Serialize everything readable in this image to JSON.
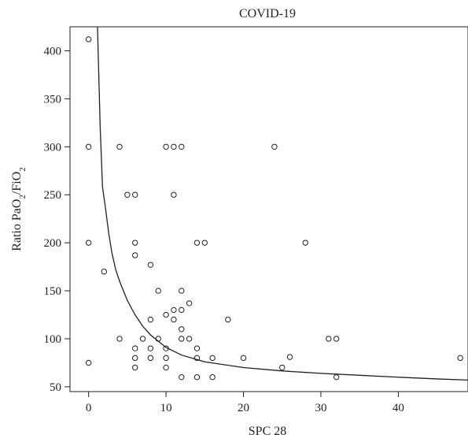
{
  "chart_data": {
    "type": "scatter",
    "title": "COVID-19",
    "xlabel": "SPC 28",
    "ylabel": {
      "parts": [
        {
          "text": "Ratio PaO",
          "sub": false
        },
        {
          "text": "2",
          "sub": true
        },
        {
          "text": "/FiO",
          "sub": false
        },
        {
          "text": "2",
          "sub": true
        }
      ]
    },
    "xlim": [
      -2.4,
      49
    ],
    "ylim": [
      45,
      425
    ],
    "x_ticks": [
      0,
      10,
      20,
      30,
      40
    ],
    "y_ticks": [
      50,
      100,
      150,
      200,
      250,
      300,
      350,
      400
    ],
    "grid": false,
    "legend": "none",
    "colors": {
      "ink": "#231f20",
      "background": "#ffffff"
    },
    "points": [
      {
        "x": 0,
        "y": 412
      },
      {
        "x": 0,
        "y": 300
      },
      {
        "x": 0,
        "y": 200
      },
      {
        "x": 0,
        "y": 75
      },
      {
        "x": 2,
        "y": 170
      },
      {
        "x": 4,
        "y": 300
      },
      {
        "x": 4,
        "y": 100
      },
      {
        "x": 5,
        "y": 250
      },
      {
        "x": 6,
        "y": 250
      },
      {
        "x": 6,
        "y": 200
      },
      {
        "x": 6,
        "y": 187
      },
      {
        "x": 6,
        "y": 90
      },
      {
        "x": 6,
        "y": 80
      },
      {
        "x": 6,
        "y": 70
      },
      {
        "x": 7,
        "y": 100
      },
      {
        "x": 8,
        "y": 177
      },
      {
        "x": 8,
        "y": 120
      },
      {
        "x": 8,
        "y": 90
      },
      {
        "x": 8,
        "y": 80
      },
      {
        "x": 9,
        "y": 150
      },
      {
        "x": 9,
        "y": 100
      },
      {
        "x": 10,
        "y": 300
      },
      {
        "x": 10,
        "y": 125
      },
      {
        "x": 10,
        "y": 90
      },
      {
        "x": 10,
        "y": 80
      },
      {
        "x": 10,
        "y": 70
      },
      {
        "x": 11,
        "y": 300
      },
      {
        "x": 11,
        "y": 250
      },
      {
        "x": 11,
        "y": 130
      },
      {
        "x": 11,
        "y": 120
      },
      {
        "x": 12,
        "y": 300
      },
      {
        "x": 12,
        "y": 150
      },
      {
        "x": 12,
        "y": 130
      },
      {
        "x": 12,
        "y": 110
      },
      {
        "x": 12,
        "y": 100
      },
      {
        "x": 12,
        "y": 60
      },
      {
        "x": 13,
        "y": 137
      },
      {
        "x": 13,
        "y": 100
      },
      {
        "x": 14,
        "y": 200
      },
      {
        "x": 14,
        "y": 90
      },
      {
        "x": 14,
        "y": 80
      },
      {
        "x": 14,
        "y": 60
      },
      {
        "x": 15,
        "y": 200
      },
      {
        "x": 16,
        "y": 80
      },
      {
        "x": 16,
        "y": 60
      },
      {
        "x": 18,
        "y": 120
      },
      {
        "x": 20,
        "y": 80
      },
      {
        "x": 24,
        "y": 300
      },
      {
        "x": 25,
        "y": 70
      },
      {
        "x": 26,
        "y": 81
      },
      {
        "x": 28,
        "y": 200
      },
      {
        "x": 31,
        "y": 100
      },
      {
        "x": 32,
        "y": 100
      },
      {
        "x": 32,
        "y": 60
      },
      {
        "x": 48,
        "y": 80
      }
    ],
    "fit_curve": {
      "points": [
        {
          "x": 1.15,
          "y": 425
        },
        {
          "x": 1.3,
          "y": 380
        },
        {
          "x": 1.5,
          "y": 320
        },
        {
          "x": 1.8,
          "y": 258
        },
        {
          "x": 2.2,
          "y": 235
        },
        {
          "x": 2.6,
          "y": 210
        },
        {
          "x": 3.0,
          "y": 190
        },
        {
          "x": 3.5,
          "y": 172
        },
        {
          "x": 4.0,
          "y": 160
        },
        {
          "x": 5.0,
          "y": 140
        },
        {
          "x": 6.0,
          "y": 125
        },
        {
          "x": 7.0,
          "y": 113
        },
        {
          "x": 8.0,
          "y": 104
        },
        {
          "x": 10.0,
          "y": 91
        },
        {
          "x": 12.0,
          "y": 83
        },
        {
          "x": 15.0,
          "y": 76
        },
        {
          "x": 20.0,
          "y": 70
        },
        {
          "x": 25.0,
          "y": 66.5
        },
        {
          "x": 30.0,
          "y": 64
        },
        {
          "x": 35.0,
          "y": 62
        },
        {
          "x": 40.0,
          "y": 60
        },
        {
          "x": 45.0,
          "y": 58.2
        },
        {
          "x": 49.0,
          "y": 57
        }
      ]
    }
  }
}
